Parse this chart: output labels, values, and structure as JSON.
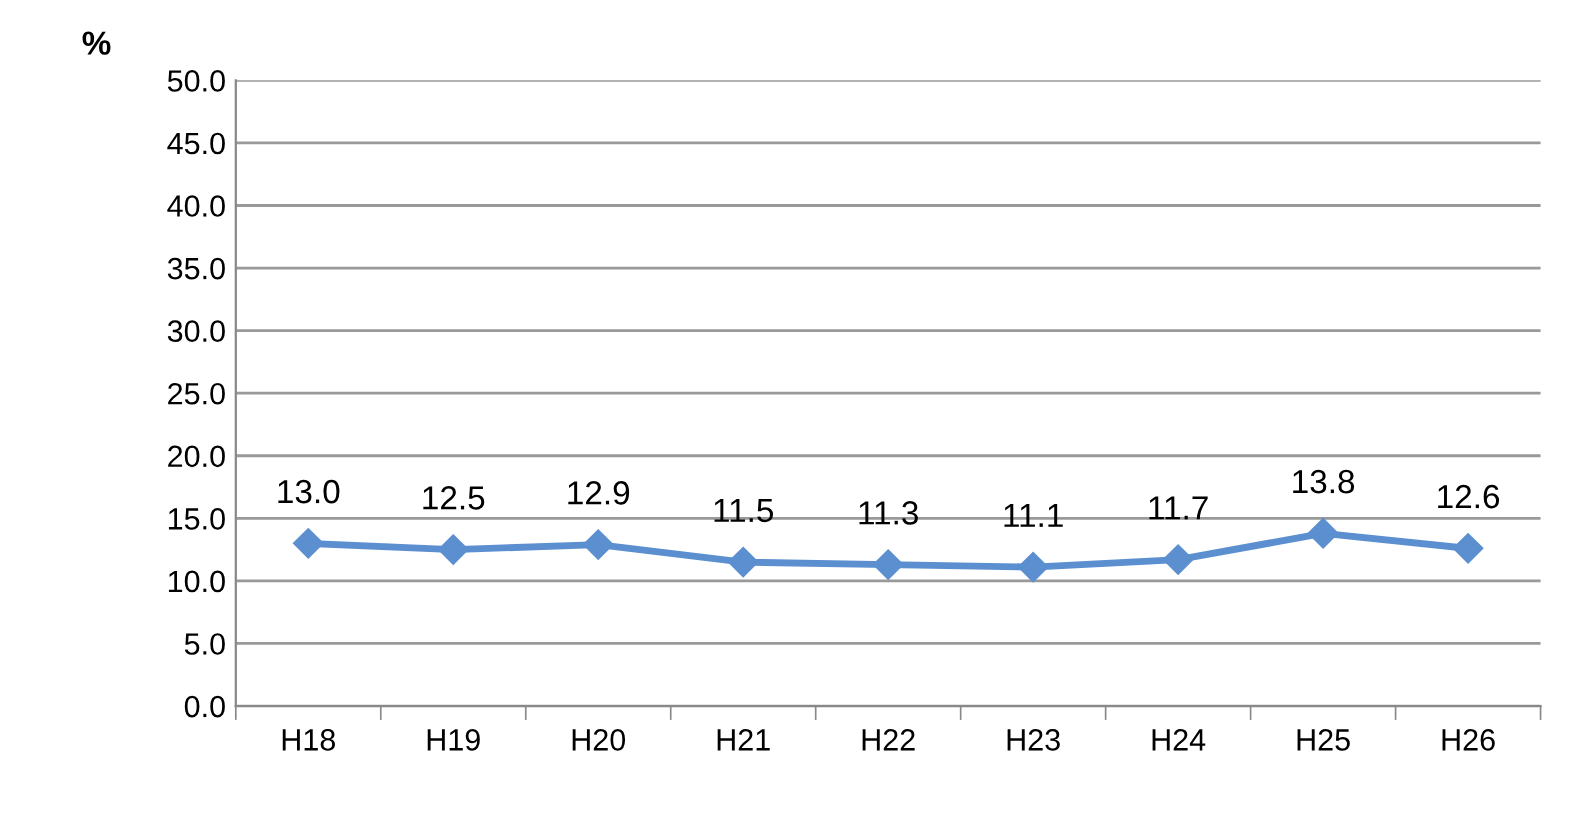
{
  "chart_data": {
    "type": "line",
    "ylabel": "%",
    "categories": [
      "H18",
      "H19",
      "H20",
      "H21",
      "H22",
      "H23",
      "H24",
      "H25",
      "H26"
    ],
    "series": [
      {
        "color": "#5b8fd0",
        "values": [
          13.0,
          12.5,
          12.9,
          11.5,
          11.3,
          11.1,
          11.7,
          13.8,
          12.6
        ],
        "value_labels": [
          "13.0",
          "12.5",
          "12.9",
          "11.5",
          "11.3",
          "11.1",
          "11.7",
          "13.8",
          "12.6"
        ]
      }
    ],
    "ylim": [
      0,
      50
    ],
    "yticks": [
      {
        "value": 0,
        "label": "0.0"
      },
      {
        "value": 5,
        "label": "5.0"
      },
      {
        "value": 10,
        "label": "10.0"
      },
      {
        "value": 15,
        "label": "15.0"
      },
      {
        "value": 20,
        "label": "20.0"
      },
      {
        "value": 25,
        "label": "25.0"
      },
      {
        "value": 30,
        "label": "30.0"
      },
      {
        "value": 35,
        "label": "35.0"
      },
      {
        "value": 40,
        "label": "40.0"
      },
      {
        "value": 45,
        "label": "45.0"
      },
      {
        "value": 50,
        "label": "50.0"
      }
    ],
    "grid": "y",
    "marker": "diamond",
    "line_style": "solid",
    "legend": false
  }
}
